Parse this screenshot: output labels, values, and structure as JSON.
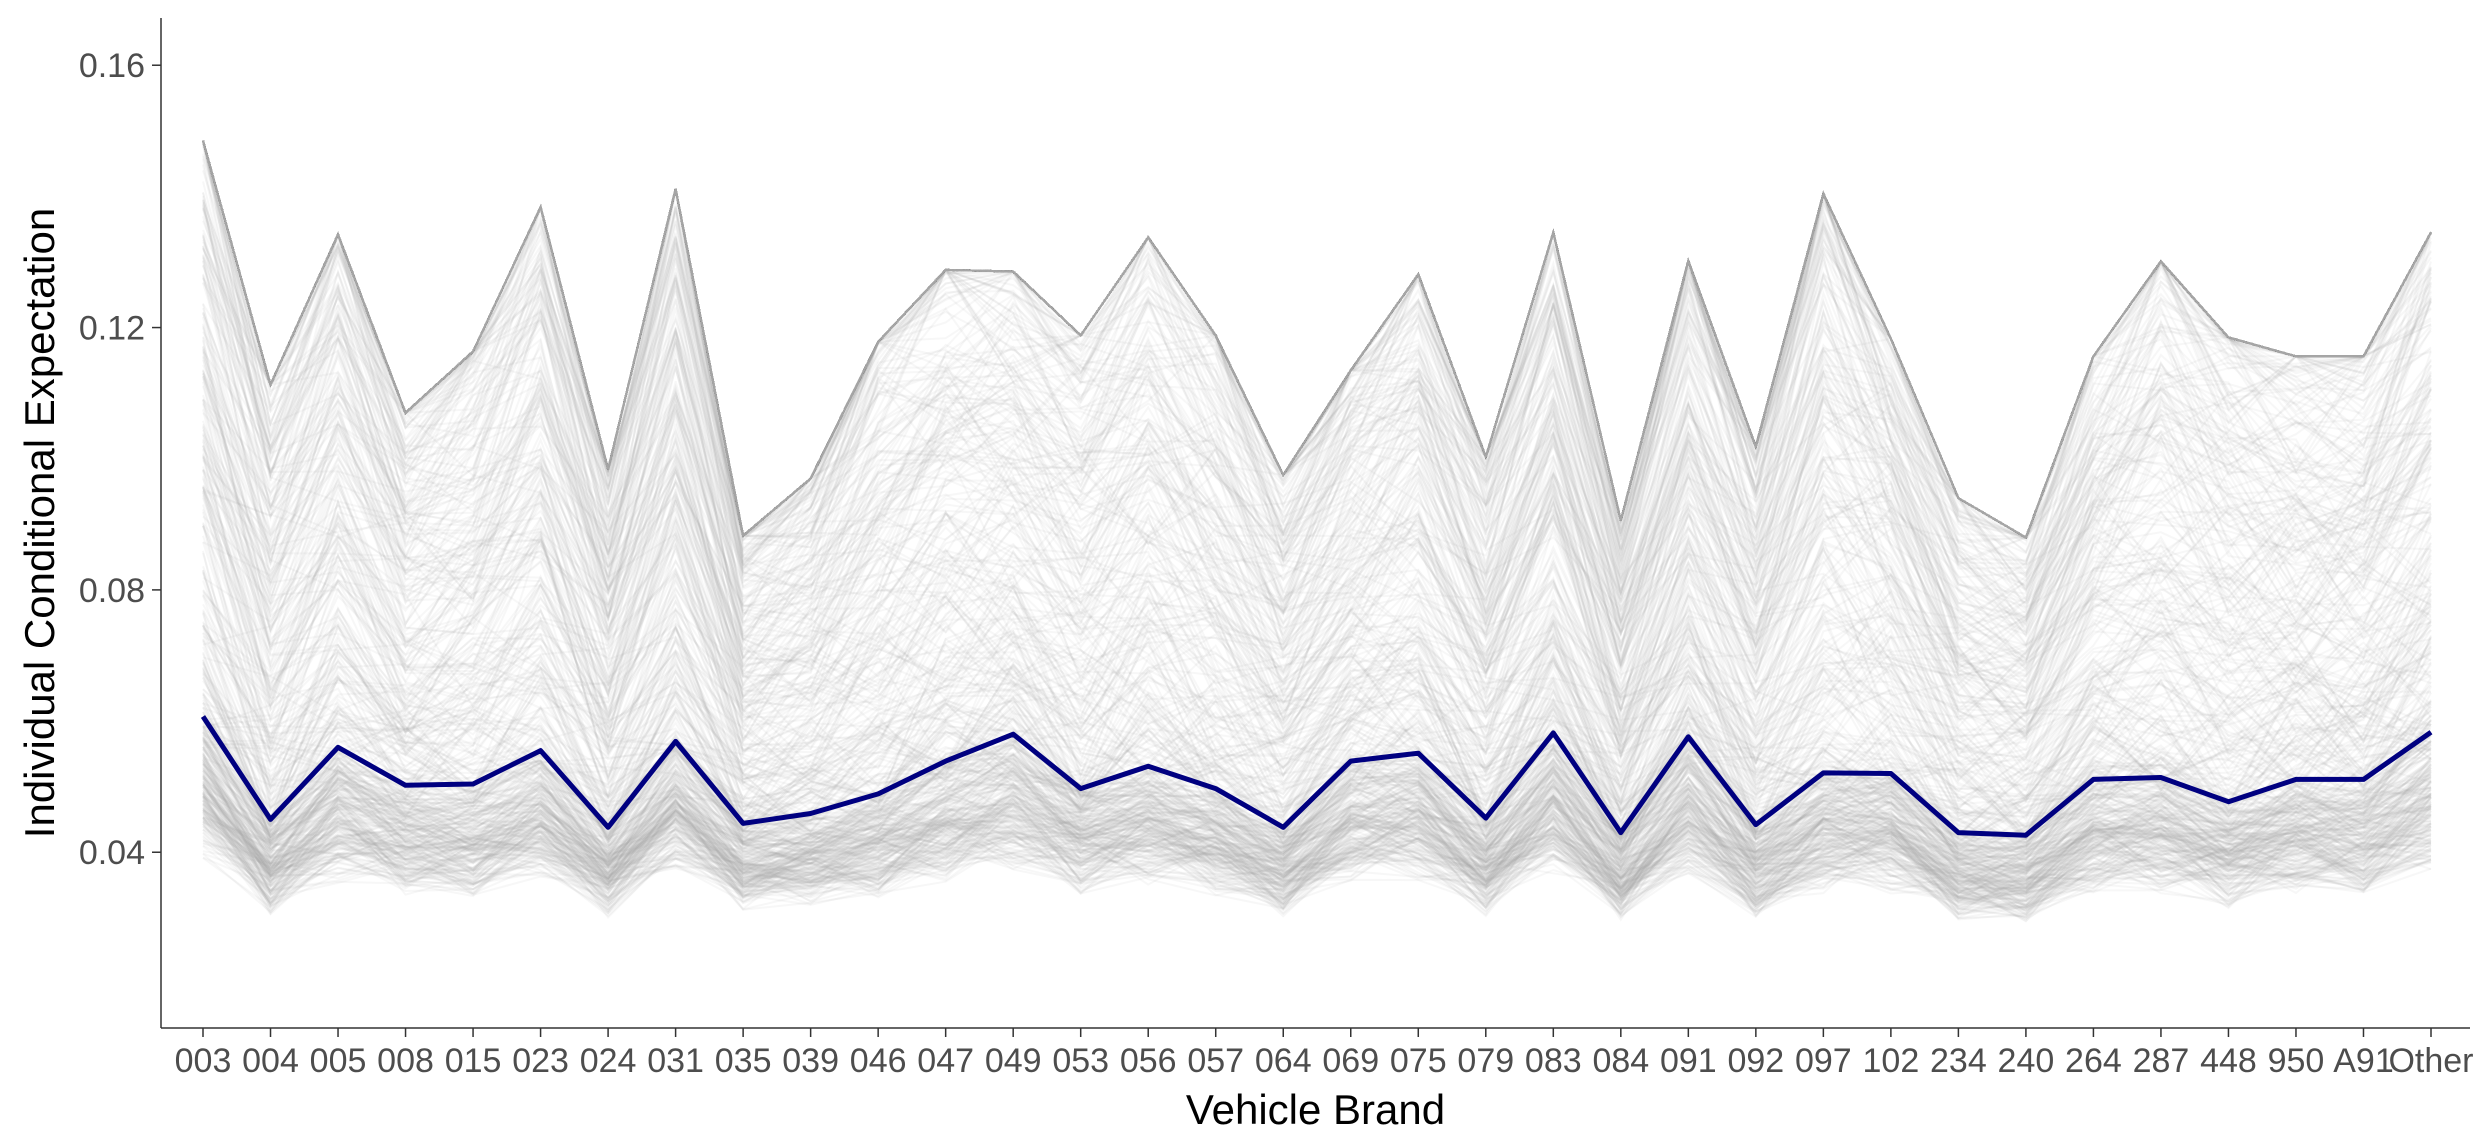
{
  "chart_data": {
    "type": "line",
    "title": "",
    "xlabel": "Vehicle Brand",
    "ylabel": "Individual Conditional Expectation",
    "categories": [
      "003",
      "004",
      "005",
      "008",
      "015",
      "023",
      "024",
      "031",
      "035",
      "039",
      "046",
      "047",
      "049",
      "053",
      "056",
      "057",
      "064",
      "069",
      "075",
      "079",
      "083",
      "084",
      "091",
      "092",
      "097",
      "102",
      "234",
      "240",
      "264",
      "287",
      "448",
      "950",
      "A91",
      "Other"
    ],
    "ylim": [
      0.0132,
      0.1672
    ],
    "yticks": [
      0.04,
      0.08,
      0.12,
      0.16
    ],
    "ytick_labels": [
      "0.04",
      "0.08",
      "0.12",
      "0.16"
    ],
    "grid": false,
    "legend": "none",
    "series": [
      {
        "role": "average",
        "color": "#000080",
        "values": [
          0.0607,
          0.045,
          0.056,
          0.0502,
          0.0504,
          0.0555,
          0.0438,
          0.0569,
          0.0444,
          0.0459,
          0.0489,
          0.0539,
          0.058,
          0.0497,
          0.0531,
          0.0497,
          0.0438,
          0.0539,
          0.0551,
          0.0452,
          0.0582,
          0.043,
          0.0576,
          0.0442,
          0.0521,
          0.052,
          0.043,
          0.0426,
          0.0511,
          0.0514,
          0.0477,
          0.0511,
          0.0511,
          0.0583
        ]
      }
    ],
    "individual_curves": {
      "color": "#a6a6a6",
      "note_count": 600,
      "upper_envelope": [
        0.164,
        0.123,
        0.148,
        0.117,
        0.128,
        0.153,
        0.108,
        0.156,
        0.096,
        0.106,
        0.13,
        0.142,
        0.141,
        0.131,
        0.148,
        0.131,
        0.107,
        0.124,
        0.141,
        0.11,
        0.148,
        0.099,
        0.143,
        0.112,
        0.156,
        0.13,
        0.103,
        0.096,
        0.127,
        0.144,
        0.131,
        0.127,
        0.127,
        0.148
      ],
      "lower_envelope": [
        0.024,
        0.02,
        0.021,
        0.022,
        0.021,
        0.022,
        0.02,
        0.023,
        0.022,
        0.022,
        0.022,
        0.022,
        0.023,
        0.022,
        0.022,
        0.022,
        0.02,
        0.022,
        0.022,
        0.02,
        0.022,
        0.02,
        0.022,
        0.02,
        0.021,
        0.021,
        0.02,
        0.02,
        0.021,
        0.021,
        0.02,
        0.021,
        0.021,
        0.022
      ]
    }
  }
}
